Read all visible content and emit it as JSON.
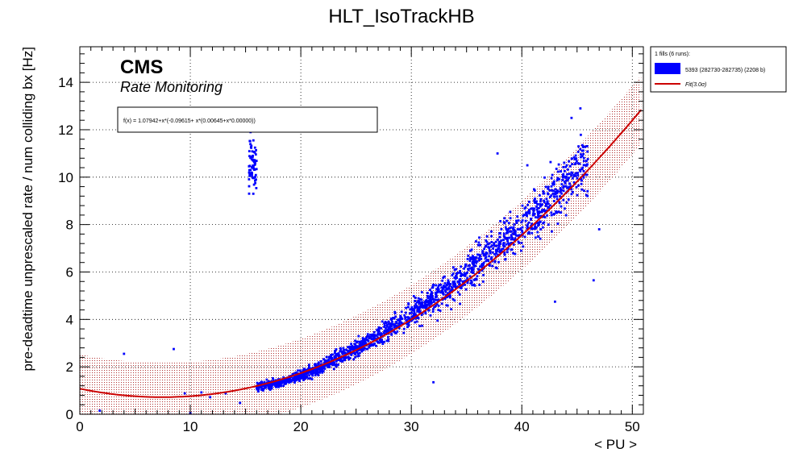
{
  "chart_data": {
    "type": "scatter",
    "title": "HLT_IsoTrackHB",
    "xlabel": "< PU >",
    "ylabel": "pre-deadtime unprescaled rate / num colliding bx [Hz]",
    "xlim": [
      0,
      51
    ],
    "ylim": [
      0,
      15.5
    ],
    "x_ticks": [
      "0",
      "10",
      "20",
      "30",
      "40",
      "50"
    ],
    "y_ticks": [
      "0",
      "2",
      "4",
      "6",
      "8",
      "10",
      "12",
      "14"
    ],
    "grid": true,
    "legend_position": "outside-right",
    "cms_label": "CMS",
    "cms_sublabel": "Rate Monitoring",
    "fit_formula": "f(x) = 1.07942+x*(-0.09615+ x*(0.00645+x*0.00000))",
    "legend": {
      "header": "1 fills (6 runs):",
      "entries": [
        {
          "label": "5393 (282730-282735) (2208 b)",
          "marker": "box",
          "color": "#0000ff"
        },
        {
          "label": "Fit(3.0σ)",
          "marker": "line",
          "color": "#cc0000"
        }
      ]
    },
    "fit": {
      "a": 1.07942,
      "b": -0.09615,
      "c": 0.00645,
      "d": 0.0,
      "x_range": [
        0,
        50.8
      ],
      "band_halfwidth_3sigma": 1.45
    },
    "series": [
      {
        "name": "5393 (282730-282735) (2208 b)",
        "color": "#0000ff",
        "outliers": [
          [
            1.8,
            0.15
          ],
          [
            4.0,
            2.55
          ],
          [
            8.5,
            2.75
          ],
          [
            9.5,
            0.88
          ],
          [
            11.0,
            0.92
          ],
          [
            11.8,
            0.72
          ],
          [
            13.2,
            0.88
          ],
          [
            14.5,
            0.48
          ],
          [
            10.0,
            0.05
          ],
          [
            32.0,
            1.35
          ],
          [
            37.8,
            11.0
          ],
          [
            40.5,
            10.5
          ],
          [
            43.0,
            4.75
          ],
          [
            44.5,
            12.5
          ],
          [
            45.3,
            12.9
          ],
          [
            46.5,
            5.65
          ],
          [
            47.0,
            7.8
          ]
        ],
        "cloud": [
          {
            "x": 16,
            "y": 1.15,
            "spread": 0.2
          },
          {
            "x": 18,
            "y": 1.3,
            "spread": 0.2
          },
          {
            "x": 20,
            "y": 1.65,
            "spread": 0.25
          },
          {
            "x": 22,
            "y": 2.05,
            "spread": 0.3
          },
          {
            "x": 24,
            "y": 2.55,
            "spread": 0.35
          },
          {
            "x": 26,
            "y": 3.0,
            "spread": 0.4
          },
          {
            "x": 28,
            "y": 3.6,
            "spread": 0.45
          },
          {
            "x": 30,
            "y": 4.2,
            "spread": 0.55
          },
          {
            "x": 32,
            "y": 4.85,
            "spread": 0.65
          },
          {
            "x": 34,
            "y": 5.5,
            "spread": 0.75
          },
          {
            "x": 36,
            "y": 6.3,
            "spread": 0.85
          },
          {
            "x": 38,
            "y": 7.1,
            "spread": 0.95
          },
          {
            "x": 40,
            "y": 7.9,
            "spread": 1.05
          },
          {
            "x": 42,
            "y": 8.8,
            "spread": 1.15
          },
          {
            "x": 44,
            "y": 9.8,
            "spread": 1.25
          },
          {
            "x": 45.5,
            "y": 10.5,
            "spread": 1.35
          }
        ]
      }
    ]
  }
}
